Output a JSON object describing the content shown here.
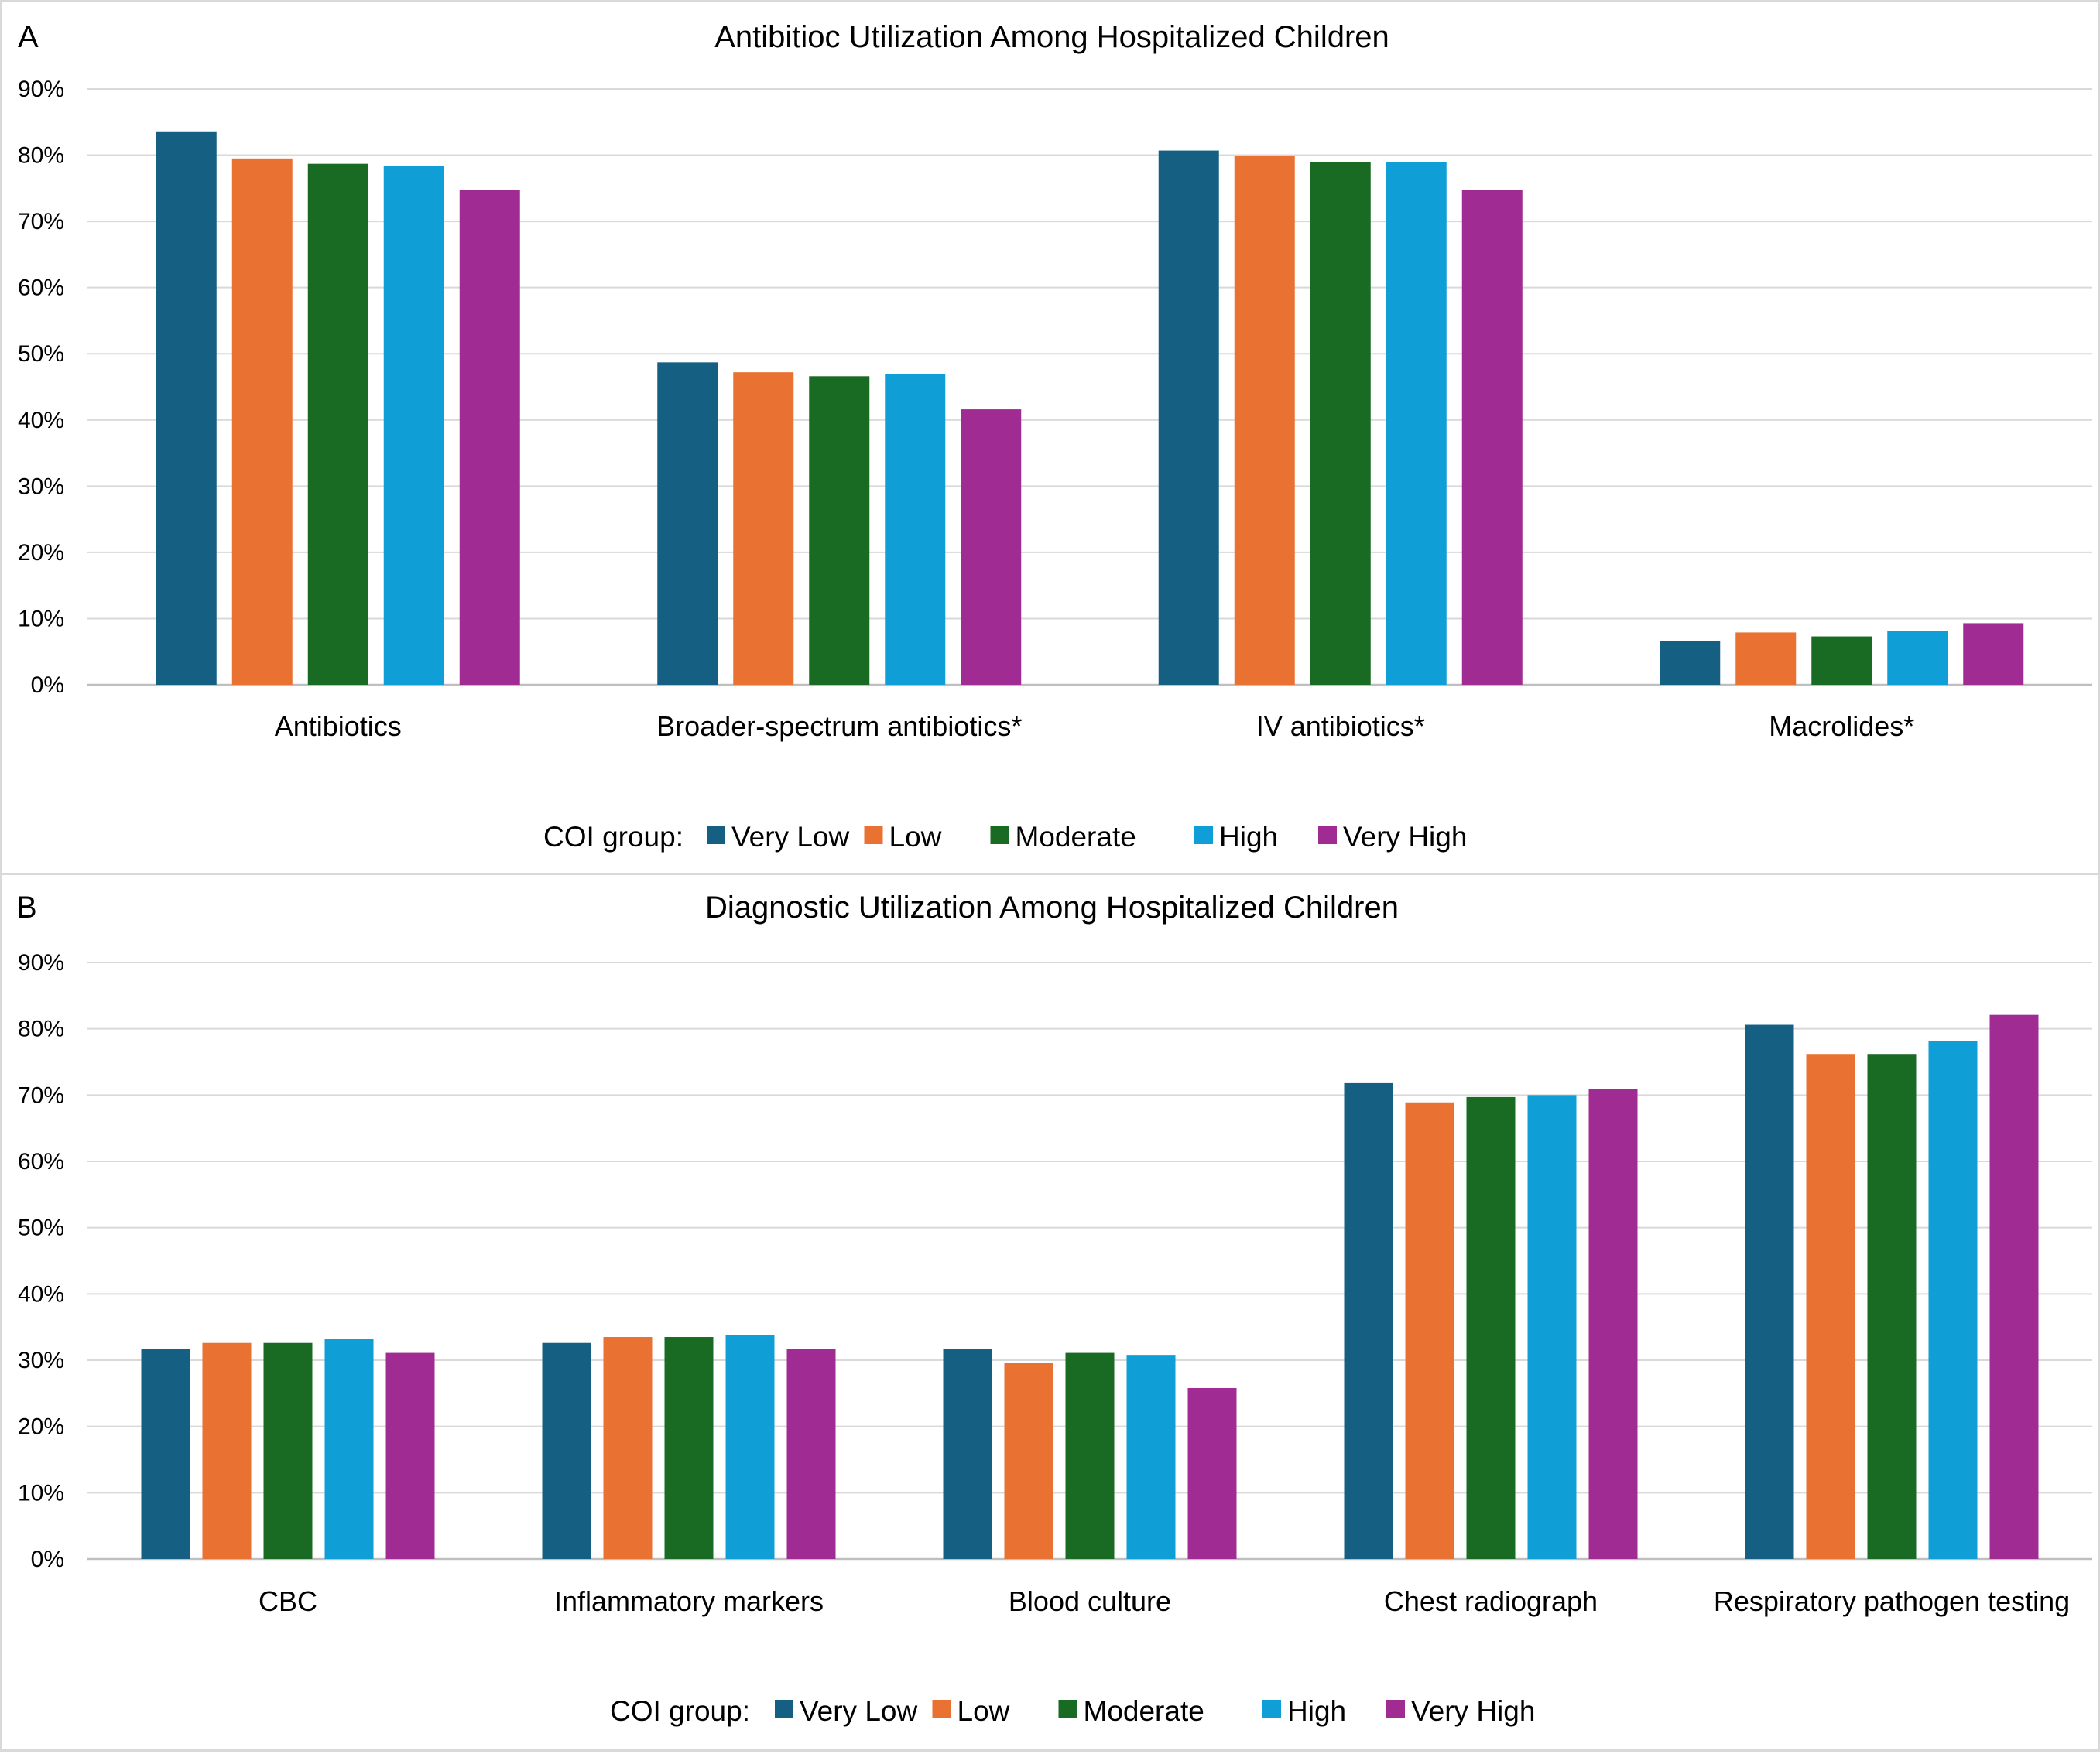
{
  "chart_data": [
    {
      "panel_label": "A",
      "type": "bar",
      "title": "Antibitioc Utilization Among Hospitalized Children",
      "categories": [
        "Antibiotics",
        "Broader-spectrum antibiotics*",
        "IV antibiotics*",
        "Macrolides*"
      ],
      "yticks": [
        "0%",
        "10%",
        "20%",
        "30%",
        "40%",
        "50%",
        "60%",
        "70%",
        "80%",
        "90%"
      ],
      "ylim": [
        0,
        90
      ],
      "grid": true,
      "legend": {
        "position": "bottom",
        "title": "COI group:",
        "entries": [
          "Very Low",
          "Low",
          "Moderate",
          "High",
          "Very High"
        ]
      },
      "series": [
        {
          "name": "Very Low",
          "color": "#156082",
          "values": [
            83.6,
            48.7,
            80.7,
            6.6
          ]
        },
        {
          "name": "Low",
          "color": "#E97132",
          "values": [
            79.5,
            47.2,
            79.9,
            7.9
          ]
        },
        {
          "name": "Moderate",
          "color": "#196B24",
          "values": [
            78.7,
            46.6,
            79.0,
            7.3
          ]
        },
        {
          "name": "High",
          "color": "#0F9ED5",
          "values": [
            78.4,
            46.9,
            79.0,
            8.1
          ]
        },
        {
          "name": "Very High",
          "color": "#A02B93",
          "values": [
            74.8,
            41.6,
            74.8,
            9.3
          ]
        }
      ]
    },
    {
      "panel_label": "B",
      "type": "bar",
      "title": "Diagnostic Utilization Among Hospitalized Children",
      "categories": [
        "CBC",
        "Inflammatory markers",
        "Blood culture",
        "Chest radiograph",
        "Respiratory pathogen testing"
      ],
      "yticks": [
        "0%",
        "10%",
        "20%",
        "30%",
        "40%",
        "50%",
        "60%",
        "70%",
        "80%",
        "90%"
      ],
      "ylim": [
        0,
        90
      ],
      "grid": true,
      "legend": {
        "position": "bottom",
        "title": "COI group:",
        "entries": [
          "Very Low",
          "Low",
          "Moderate",
          "High",
          "Very High"
        ]
      },
      "series": [
        {
          "name": "Very Low",
          "color": "#156082",
          "values": [
            31.7,
            32.6,
            31.7,
            71.8,
            80.6
          ]
        },
        {
          "name": "Low",
          "color": "#E97132",
          "values": [
            32.6,
            33.5,
            29.6,
            68.9,
            76.2
          ]
        },
        {
          "name": "Moderate",
          "color": "#196B24",
          "values": [
            32.6,
            33.5,
            31.1,
            69.7,
            76.2
          ]
        },
        {
          "name": "High",
          "color": "#0F9ED5",
          "values": [
            33.2,
            33.8,
            30.8,
            70.0,
            78.2
          ]
        },
        {
          "name": "Very High",
          "color": "#A02B93",
          "values": [
            31.1,
            31.7,
            25.8,
            70.9,
            82.1
          ]
        }
      ]
    }
  ]
}
